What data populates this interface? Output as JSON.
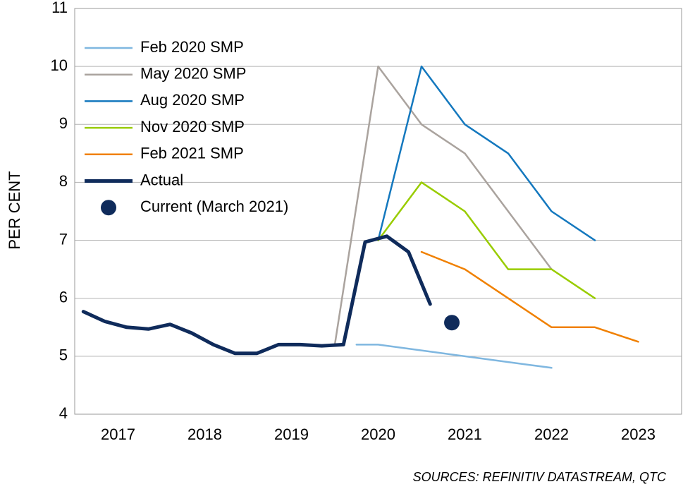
{
  "chart_data": {
    "type": "line",
    "title": "",
    "xlabel": "",
    "ylabel": "PER CENT",
    "source": "SOURCES: REFINITIV DATASTREAM, QTC",
    "ylim": [
      4,
      11
    ],
    "yticks": [
      "4",
      "5",
      "6",
      "7",
      "8",
      "9",
      "10",
      "11"
    ],
    "xticks": [
      "2017",
      "2018",
      "2019",
      "2020",
      "2021",
      "2022",
      "2023"
    ],
    "xlim_quarters": [
      2016.5,
      2023.5
    ],
    "grid": "horizontal",
    "legend_placement": "top-left",
    "series": [
      {
        "name": "Feb 2020 SMP",
        "color": "#7fb7e0",
        "width": 2.5,
        "points": [
          [
            2019.75,
            5.2
          ],
          [
            2020.0,
            5.2
          ],
          [
            2020.25,
            5.15
          ],
          [
            2020.5,
            5.1
          ],
          [
            2020.75,
            5.05
          ],
          [
            2021.0,
            5.0
          ],
          [
            2021.25,
            4.95
          ],
          [
            2021.5,
            4.9
          ],
          [
            2021.75,
            4.85
          ],
          [
            2022.0,
            4.8
          ]
        ]
      },
      {
        "name": "May 2020 SMP",
        "color": "#aaa39e",
        "width": 2.5,
        "points": [
          [
            2019.5,
            5.2
          ],
          [
            2020.0,
            10.0
          ],
          [
            2020.5,
            9.0
          ],
          [
            2021.0,
            8.5
          ],
          [
            2021.5,
            7.5
          ],
          [
            2022.0,
            6.5
          ]
        ]
      },
      {
        "name": "Aug 2020 SMP",
        "color": "#1478be",
        "width": 2.5,
        "points": [
          [
            2020.0,
            7.0
          ],
          [
            2020.5,
            10.0
          ],
          [
            2021.0,
            9.0
          ],
          [
            2021.5,
            8.5
          ],
          [
            2022.0,
            7.5
          ],
          [
            2022.5,
            7.0
          ]
        ]
      },
      {
        "name": "Nov 2020 SMP",
        "color": "#99cc00",
        "width": 2.5,
        "points": [
          [
            2020.0,
            7.0
          ],
          [
            2020.5,
            8.0
          ],
          [
            2021.0,
            7.5
          ],
          [
            2021.5,
            6.5
          ],
          [
            2022.0,
            6.5
          ],
          [
            2022.5,
            6.0
          ]
        ]
      },
      {
        "name": "Feb 2021 SMP",
        "color": "#f08000",
        "width": 2.5,
        "points": [
          [
            2020.5,
            6.8
          ],
          [
            2021.0,
            6.5
          ],
          [
            2021.5,
            6.0
          ],
          [
            2022.0,
            5.5
          ],
          [
            2022.5,
            5.5
          ],
          [
            2023.0,
            5.25
          ]
        ]
      },
      {
        "name": "Actual",
        "color": "#0f2b5b",
        "width": 5,
        "points": [
          [
            2016.6,
            5.77
          ],
          [
            2016.85,
            5.6
          ],
          [
            2017.1,
            5.5
          ],
          [
            2017.35,
            5.47
          ],
          [
            2017.6,
            5.55
          ],
          [
            2017.85,
            5.4
          ],
          [
            2018.1,
            5.2
          ],
          [
            2018.35,
            5.05
          ],
          [
            2018.6,
            5.05
          ],
          [
            2018.85,
            5.2
          ],
          [
            2019.1,
            5.2
          ],
          [
            2019.35,
            5.18
          ],
          [
            2019.6,
            5.2
          ],
          [
            2019.85,
            6.97
          ],
          [
            2020.1,
            7.07
          ],
          [
            2020.35,
            6.8
          ],
          [
            2020.6,
            5.9
          ]
        ]
      }
    ],
    "points": [
      {
        "name": "Current (March 2021)",
        "color": "#0f2b5b",
        "x": 2020.85,
        "y": 5.58
      }
    ]
  }
}
